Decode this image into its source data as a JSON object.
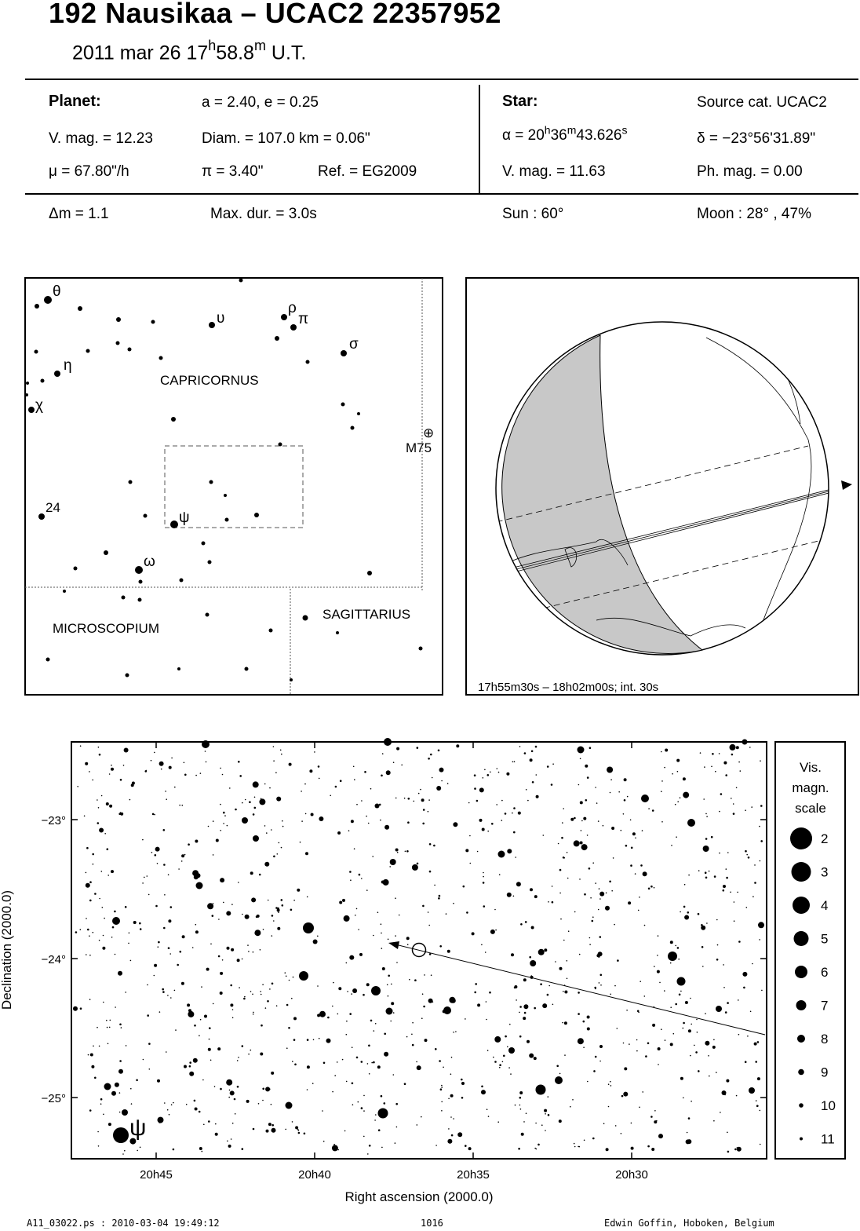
{
  "header": {
    "title": "192 Nausikaa  –  UCAC2 22357952",
    "date": "2011 mar 26  17",
    "time_h": "h",
    "time_min": "58.8",
    "time_m": "m",
    "time_ut": " U.T."
  },
  "planet": {
    "heading": "Planet:",
    "orbit": "a = 2.40, e = 0.25",
    "vmag": "V. mag. = 12.23",
    "diam": "Diam. = 107.0 km = 0.06\"",
    "mu": "μ =  67.80\"/h",
    "pi": "π =  3.40\"",
    "ref": "Ref. = EG2009"
  },
  "star": {
    "heading": "Star:",
    "source": "Source cat.  UCAC2",
    "ra_a": "α = 20",
    "ra_h": "h",
    "ra_b": "36",
    "ra_m": "m",
    "ra_c": "43.626",
    "ra_s": "s",
    "dec": "δ = −23°56'31.89\"",
    "vmag": "V. mag. = 11.63",
    "phmag": "Ph. mag. =  0.00"
  },
  "event": {
    "dm": "Δm = 1.1",
    "maxdur": "Max. dur. = 3.0s",
    "sun": "Sun :  60°",
    "moon": "Moon :  28° , 47%"
  },
  "finder_chart": {
    "constellations": [
      "CAPRICORNUS",
      "MICROSCOPIUM",
      "SAGITTARIUS"
    ],
    "star_labels": [
      "θ",
      "υ",
      "ρ",
      "π",
      "σ",
      "η",
      "χ",
      "24",
      "ψ",
      "ω"
    ],
    "object_symbol": "⊕",
    "object_label": "M75"
  },
  "globe": {
    "caption": "17h55m30s – 18h02m00s; int. 30s"
  },
  "star_chart": {
    "dec_ticks": [
      "−23°",
      "−24°",
      "−25°"
    ],
    "ra_ticks": [
      "20h45",
      "20h40",
      "20h35",
      "20h30"
    ],
    "ylabel": "Declination (2000.0)",
    "xlabel": "Right ascension (2000.0)",
    "psi_label": "ψ",
    "scale_title": [
      "Vis.",
      "magn.",
      "scale"
    ],
    "scale_mags": [
      "2",
      "3",
      "4",
      "5",
      "6",
      "7",
      "8",
      "9",
      "10",
      "11"
    ]
  },
  "footer": {
    "file": "A11_03022.ps : 2010-03-04 19:49:12",
    "number": "1016",
    "author": "Edwin Goffin, Hoboken, Belgium"
  }
}
